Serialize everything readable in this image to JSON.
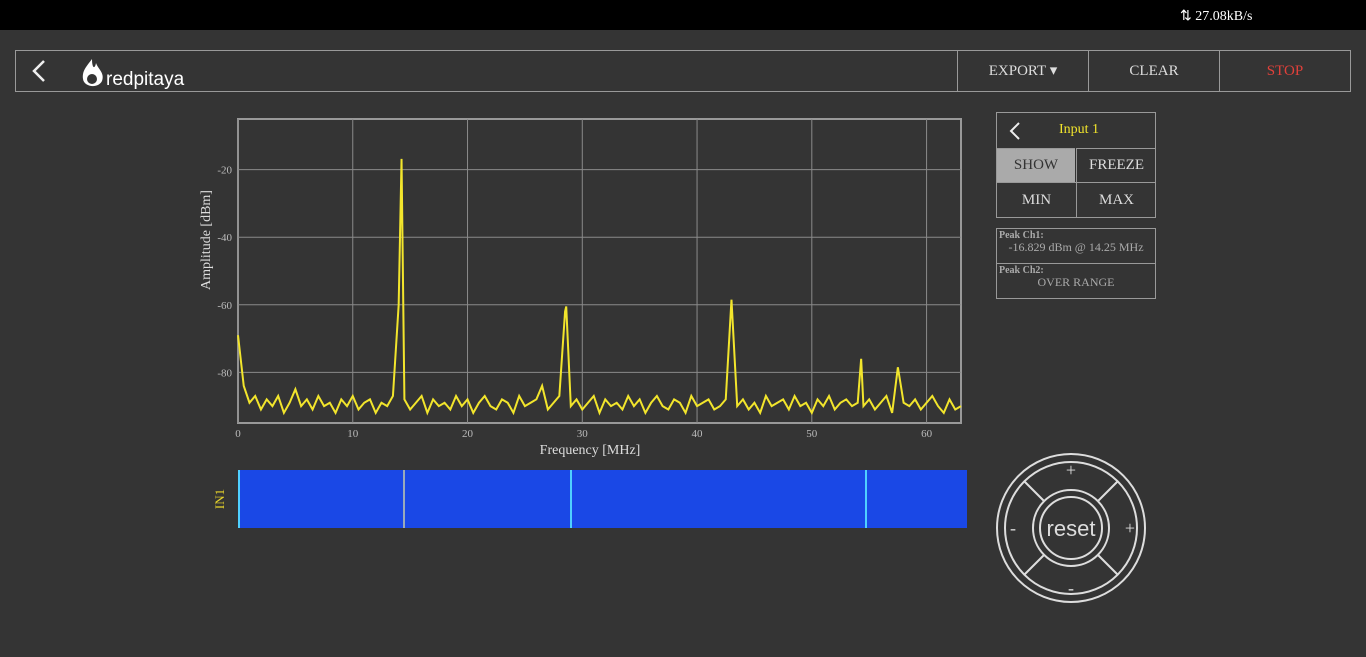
{
  "status_bar": {
    "speed": "27.08kB/s"
  },
  "nav": {
    "logo": "redpitaya",
    "export": "EXPORT",
    "clear": "CLEAR",
    "stop": "STOP"
  },
  "chart_data": {
    "type": "line",
    "x_label": "Frequency  [MHz]",
    "y_label": "Amplitude  [dBm]",
    "xlim": [
      0,
      63
    ],
    "ylim": [
      -95,
      -5
    ],
    "xticks": [
      0,
      10,
      20,
      30,
      40,
      50,
      60
    ],
    "yticks": [
      -20,
      -40,
      -60,
      -80
    ],
    "grid": true,
    "x": [
      0,
      0.5,
      1,
      1.5,
      2,
      2.5,
      3,
      3.5,
      4,
      4.5,
      5,
      5.5,
      6,
      6.5,
      7,
      7.5,
      8,
      8.5,
      9,
      9.5,
      10,
      10.5,
      11,
      11.5,
      12,
      12.5,
      13,
      13.5,
      14,
      14.25,
      14.5,
      15,
      15.5,
      16,
      16.5,
      17,
      17.5,
      18,
      18.5,
      19,
      19.5,
      20,
      20.5,
      21,
      21.5,
      22,
      22.5,
      23,
      23.5,
      24,
      24.5,
      25,
      25.5,
      26,
      26.5,
      27,
      27.5,
      28,
      28.5,
      28.6,
      29,
      29.5,
      30,
      30.5,
      31,
      31.5,
      32,
      32.5,
      33,
      33.5,
      34,
      34.5,
      35,
      35.5,
      36,
      36.5,
      37,
      37.5,
      38,
      38.5,
      39,
      39.5,
      40,
      40.5,
      41,
      41.5,
      42,
      42.5,
      43,
      43.5,
      44,
      44.5,
      45,
      45.5,
      46,
      46.5,
      47,
      47.5,
      48,
      48.5,
      49,
      49.5,
      50,
      50.5,
      51,
      51.5,
      52,
      52.5,
      53,
      53.5,
      54,
      54.3,
      54.5,
      55,
      55.5,
      56,
      56.5,
      57,
      57.5,
      58,
      58.5,
      59,
      59.5,
      60,
      60.5,
      61,
      61.5,
      62,
      62.5,
      63
    ],
    "series": [
      {
        "color": "#f2e52c",
        "values": [
          -69,
          -84,
          -89,
          -87,
          -91,
          -88,
          -90,
          -87,
          -92,
          -89,
          -85,
          -90,
          -88,
          -91,
          -87,
          -90,
          -89,
          -92,
          -88,
          -90,
          -87,
          -91,
          -89,
          -88,
          -92,
          -89,
          -90,
          -87,
          -60,
          -16.8,
          -88,
          -91,
          -89,
          -87,
          -92,
          -88,
          -90,
          -89,
          -91,
          -87,
          -90,
          -88,
          -92,
          -89,
          -87,
          -90,
          -91,
          -88,
          -89,
          -92,
          -87,
          -90,
          -89,
          -88,
          -84,
          -91,
          -89,
          -87,
          -62,
          -60.5,
          -90,
          -88,
          -91,
          -89,
          -87,
          -92,
          -88,
          -90,
          -89,
          -91,
          -87,
          -90,
          -88,
          -92,
          -89,
          -87,
          -90,
          -91,
          -88,
          -89,
          -92,
          -87,
          -90,
          -89,
          -88,
          -91,
          -90,
          -88,
          -58.5,
          -90,
          -88,
          -91,
          -89,
          -92,
          -87,
          -90,
          -89,
          -88,
          -91,
          -87,
          -90,
          -89,
          -92,
          -88,
          -90,
          -87,
          -91,
          -89,
          -88,
          -90,
          -89,
          -76,
          -90,
          -88,
          -91,
          -89,
          -87,
          -92,
          -78.5,
          -89,
          -90,
          -88,
          -91,
          -89,
          -87,
          -90,
          -92,
          -88,
          -91,
          -90
        ]
      }
    ]
  },
  "waterfall": {
    "label": "IN1"
  },
  "panel": {
    "title": "Input 1",
    "show": "SHOW",
    "freeze": "FREEZE",
    "min": "MIN",
    "max": "MAX",
    "peak_ch1_label": "Peak  Ch1:",
    "peak_ch1_value": "-16.829  dBm @ 14.25  MHz",
    "peak_ch2_label": "Peak  Ch2:",
    "peak_ch2_value": "OVER RANGE"
  },
  "joystick": {
    "center": "reset",
    "up": "+",
    "down": "-",
    "left": "-",
    "right": "+"
  }
}
